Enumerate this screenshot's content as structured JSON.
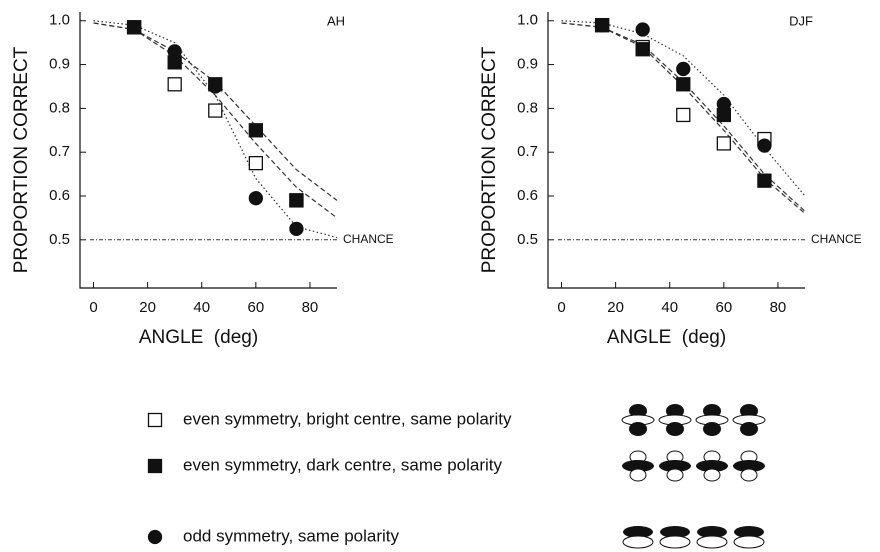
{
  "chart_data": [
    {
      "type": "scatter",
      "annotation": "AH",
      "x_label": "ANGLE  (deg)",
      "y_label": "PROPORTION CORRECT",
      "xlim": [
        -5,
        90
      ],
      "ylim": [
        0.39,
        1.02
      ],
      "xticks": [
        0,
        20,
        40,
        60,
        80
      ],
      "yticks": [
        0.5,
        0.6,
        0.7,
        0.8,
        0.9,
        {
          "value": 1,
          "label": "1.0"
        }
      ],
      "reference_line": {
        "value": 0.5,
        "label": "CHANCE"
      },
      "x": [
        15,
        30,
        45,
        60,
        75
      ],
      "series": [
        {
          "name": "even symmetry, bright centre, same polarity",
          "marker": "open-square",
          "values": [
            0.985,
            0.855,
            0.795,
            0.675,
            0.59
          ]
        },
        {
          "name": "even symmetry, dark centre, same polarity",
          "marker": "filled-square",
          "values": [
            0.985,
            0.905,
            0.855,
            0.75,
            0.59
          ]
        },
        {
          "name": "odd symmetry, same polarity",
          "marker": "filled-circle",
          "values": [
            0.985,
            0.93,
            0.85,
            0.595,
            0.525
          ]
        }
      ],
      "fits": [
        {
          "style": "dotted",
          "x": [
            0,
            15,
            30,
            45,
            60,
            75,
            90
          ],
          "values": [
            1.0,
            0.99,
            0.95,
            0.83,
            0.64,
            0.53,
            0.505
          ]
        },
        {
          "style": "dashed",
          "x": [
            0,
            15,
            30,
            45,
            60,
            75,
            90
          ],
          "values": [
            0.995,
            0.98,
            0.92,
            0.83,
            0.72,
            0.62,
            0.55
          ]
        },
        {
          "style": "dashed",
          "x": [
            0,
            15,
            30,
            45,
            60,
            75,
            90
          ],
          "values": [
            0.995,
            0.98,
            0.93,
            0.86,
            0.76,
            0.66,
            0.59
          ]
        }
      ]
    },
    {
      "type": "scatter",
      "annotation": "DJF",
      "x_label": "ANGLE  (deg)",
      "y_label": "PROPORTION CORRECT",
      "xlim": [
        -5,
        90
      ],
      "ylim": [
        0.39,
        1.02
      ],
      "xticks": [
        0,
        20,
        40,
        60,
        80
      ],
      "yticks": [
        0.5,
        0.6,
        0.7,
        0.8,
        0.9,
        {
          "value": 1,
          "label": "1.0"
        }
      ],
      "reference_line": {
        "value": 0.5,
        "label": "CHANCE"
      },
      "x": [
        15,
        30,
        45,
        60,
        75
      ],
      "series": [
        {
          "marker": "open-square",
          "values": [
            0.99,
            0.94,
            0.785,
            0.72,
            0.73
          ]
        },
        {
          "marker": "filled-square",
          "values": [
            0.99,
            0.935,
            0.855,
            0.785,
            0.635
          ]
        },
        {
          "marker": "filled-circle",
          "values": [
            0.99,
            0.98,
            0.89,
            0.81,
            0.715
          ]
        }
      ],
      "fits": [
        {
          "style": "dotted",
          "x": [
            0,
            15,
            30,
            45,
            60,
            75,
            90
          ],
          "values": [
            1.0,
            0.995,
            0.97,
            0.92,
            0.83,
            0.71,
            0.6
          ]
        },
        {
          "style": "dashed",
          "x": [
            0,
            15,
            30,
            45,
            60,
            75,
            90
          ],
          "values": [
            0.995,
            0.985,
            0.94,
            0.85,
            0.75,
            0.64,
            0.56
          ]
        },
        {
          "style": "dashed",
          "x": [
            0,
            15,
            30,
            45,
            60,
            75,
            90
          ],
          "values": [
            0.995,
            0.985,
            0.945,
            0.86,
            0.76,
            0.65,
            0.565
          ]
        }
      ]
    }
  ]
}
